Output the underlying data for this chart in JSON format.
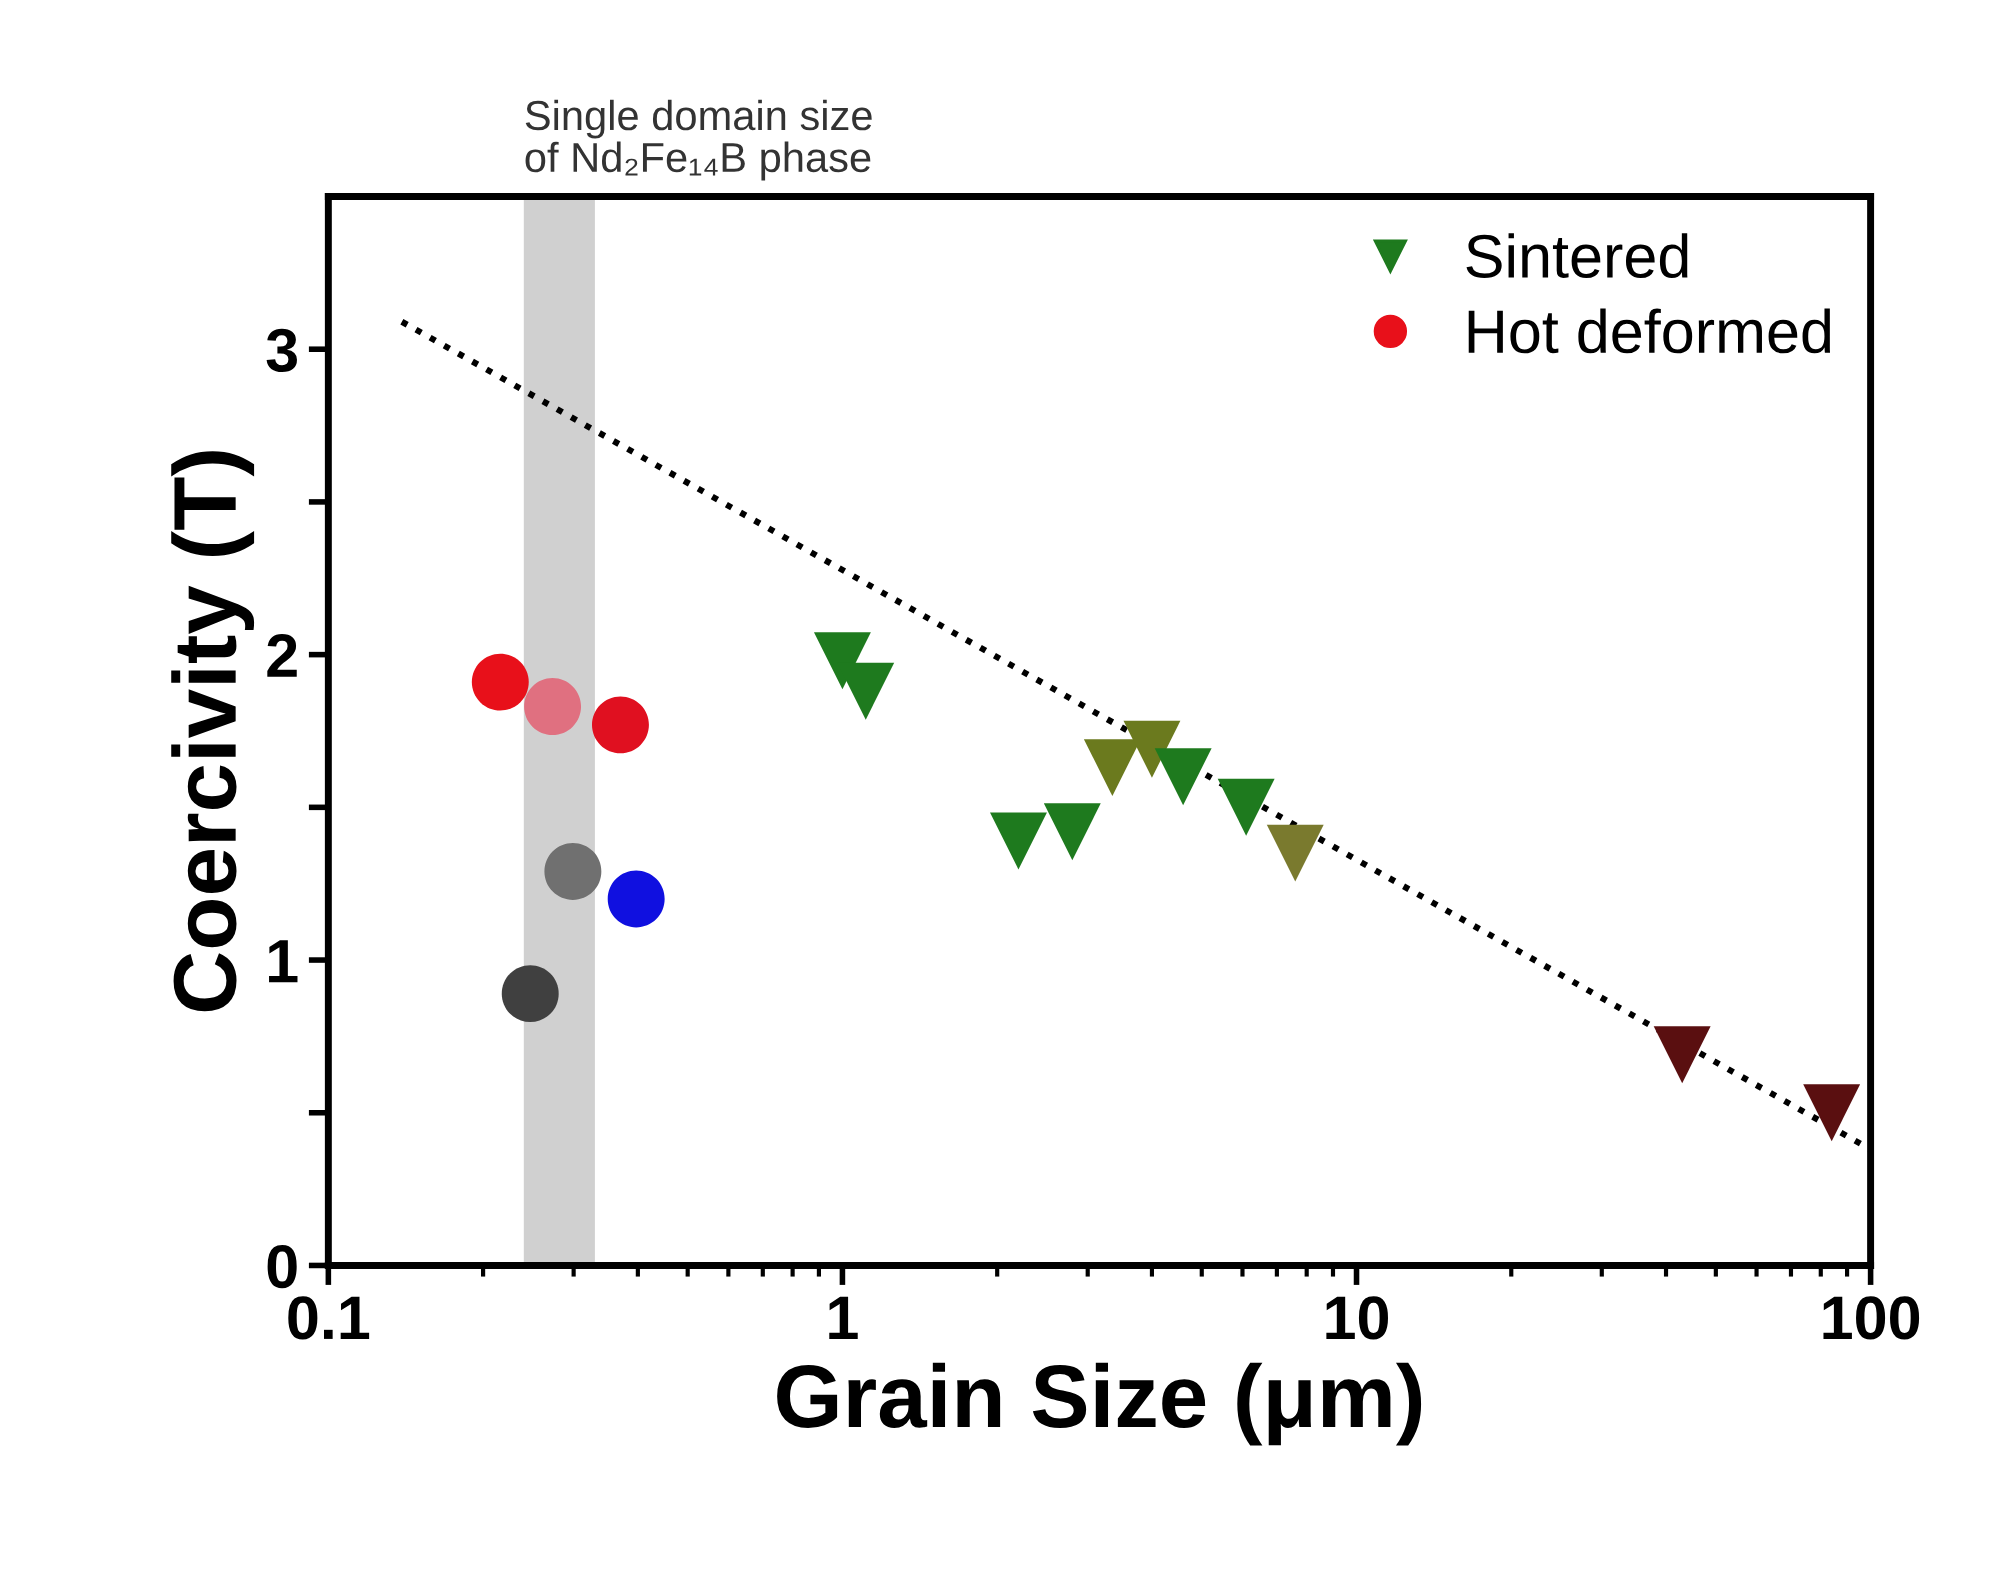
{
  "chart_data": {
    "type": "scatter",
    "xlabel": "Grain Size (μm)",
    "ylabel": "Coercivity (T)",
    "log": "x",
    "xlim": [
      0.1,
      100
    ],
    "xticks": [
      0.1,
      1,
      10,
      100
    ],
    "ylim": [
      0,
      3.5
    ],
    "yticks": [
      0,
      {
        "value": 0.5,
        "label": null
      },
      1,
      {
        "value": 1.5,
        "label": null
      },
      2,
      {
        "value": 2.5,
        "label": null
      },
      3
    ],
    "grid": false,
    "legend": "top right",
    "bands": [
      {
        "axis": "x",
        "from": 0.24,
        "to": 0.33,
        "label": "Single domain size\nof Nd₂Fe₁₄B phase",
        "color": "#d0d0d0"
      }
    ],
    "series": [
      {
        "name": "Sintered",
        "marker": "triangle",
        "x": [
          1.0,
          1.11,
          2.2,
          2.8,
          3.35,
          4.0,
          4.6,
          6.1,
          7.6,
          43,
          84
        ],
        "values": [
          1.98,
          1.88,
          1.39,
          1.42,
          1.63,
          1.69,
          1.6,
          1.5,
          1.35,
          0.69,
          0.5
        ],
        "colors": [
          "#1e7a1e",
          "#1e7a1e",
          "#1e7a1e",
          "#1e7a1e",
          "#6b7a1e",
          "#6b7a1e",
          "#1e7a1e",
          "#1e7a1e",
          "#7a7a2e",
          "#5a0f10",
          "#5a0f10"
        ]
      },
      {
        "name": "Hot deformed",
        "marker": "circle",
        "x": [
          0.216,
          0.273,
          0.37,
          0.299,
          0.397,
          0.247
        ],
        "values": [
          1.91,
          1.83,
          1.77,
          1.29,
          1.2,
          0.89
        ],
        "colors": [
          "#e8101a",
          "#e07080",
          "#e01020",
          "#707070",
          "#1010e0",
          "#404040"
        ]
      },
      {
        "type": "line",
        "line_style": "dotted",
        "color": "#000000",
        "x": [
          0.139,
          100
        ],
        "values": [
          3.09,
          0.38
        ]
      }
    ]
  }
}
